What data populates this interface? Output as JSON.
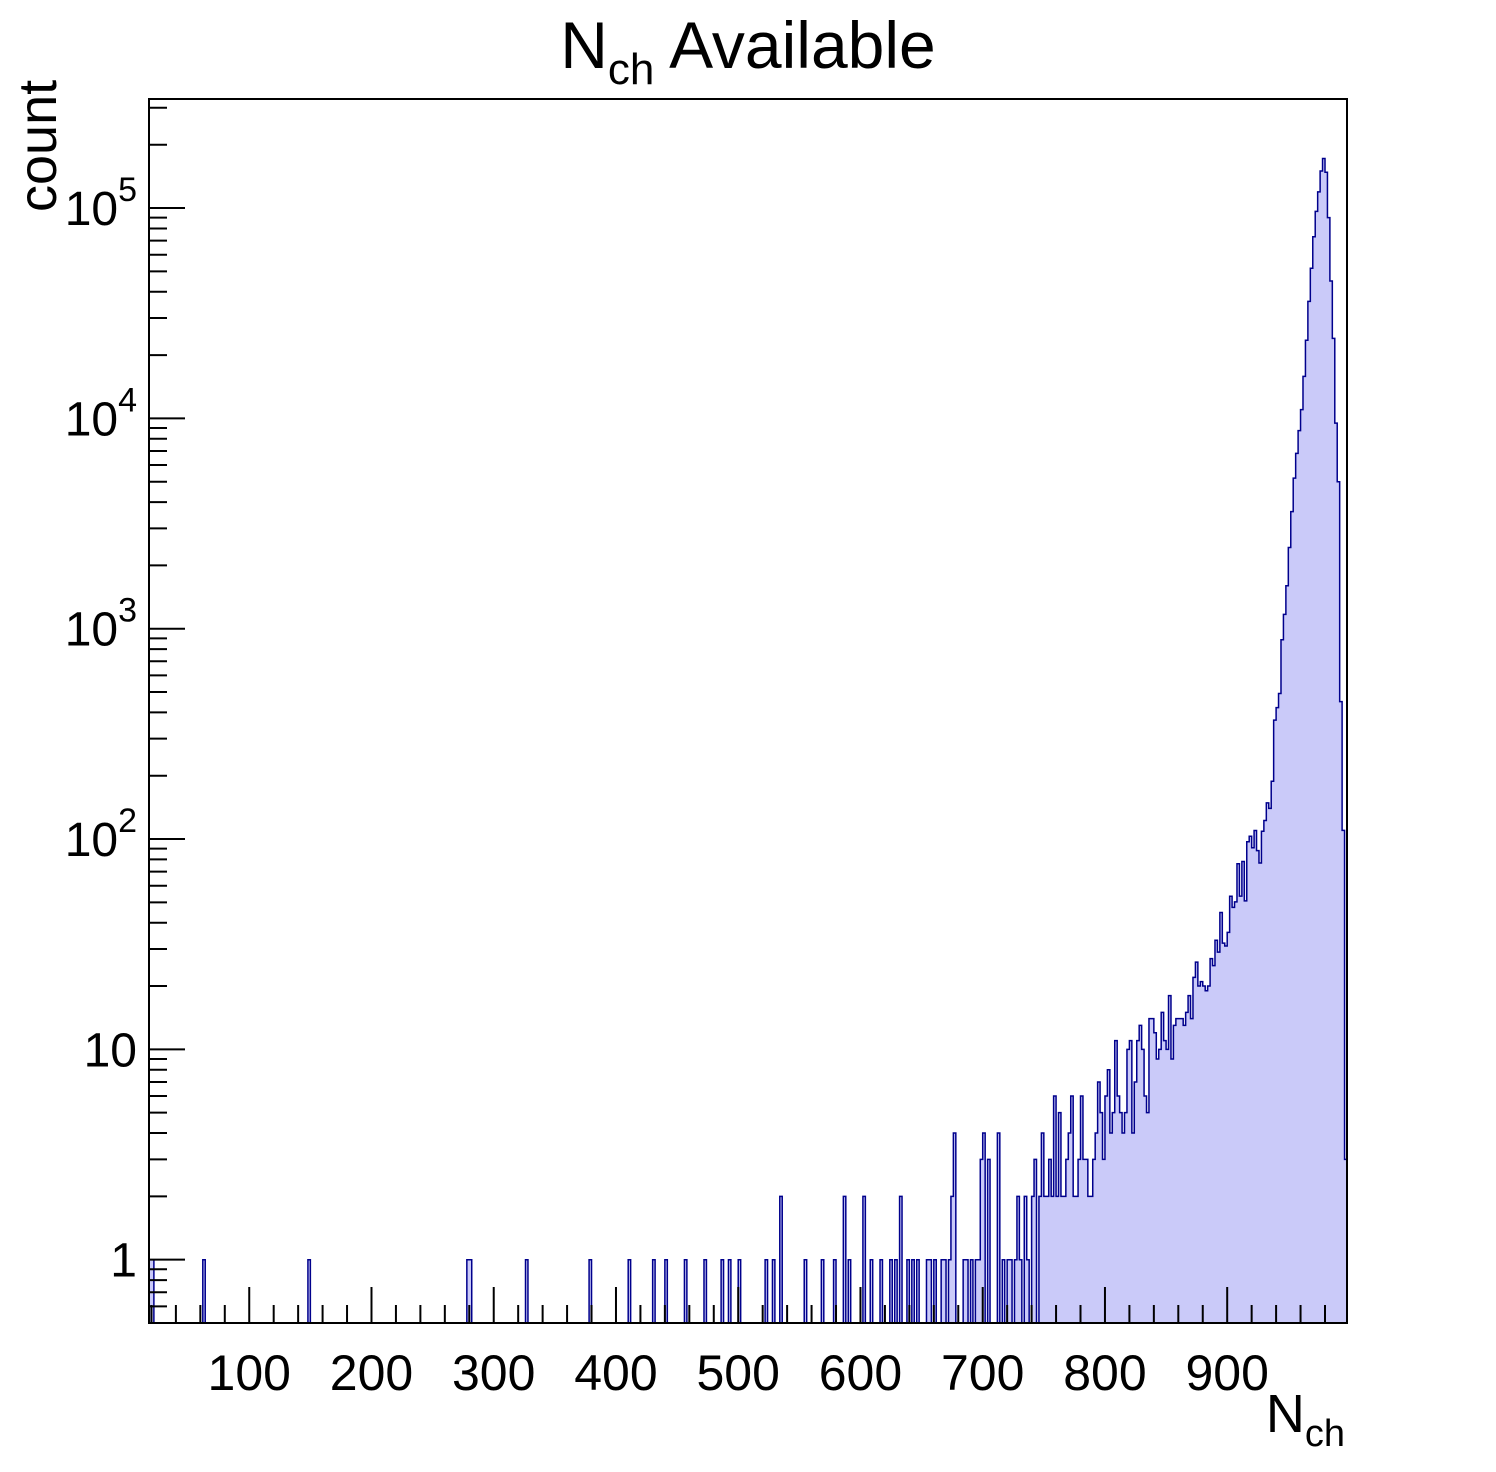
{
  "chart_data": {
    "type": "histogram",
    "title_main": "N",
    "title_sub": "ch",
    "title_rest": " Available",
    "ylabel": "count",
    "xlabel_main": "N",
    "xlabel_sub": "ch",
    "y_scale": "log",
    "grid": false,
    "legend": null,
    "x_range": [
      18,
      998
    ],
    "bin_width": 2,
    "y_range": [
      0.5,
      330000
    ],
    "x_major_ticks": [
      100,
      200,
      300,
      400,
      500,
      600,
      700,
      800,
      900
    ],
    "x_minor_step": 20,
    "y_tick_labels": [
      {
        "base": "1",
        "exp": ""
      },
      {
        "base": "10",
        "exp": ""
      },
      {
        "base": "10",
        "exp": "2"
      },
      {
        "base": "10",
        "exp": "3"
      },
      {
        "base": "10",
        "exp": "4"
      },
      {
        "base": "10",
        "exp": "5"
      }
    ],
    "peak": {
      "x": 978,
      "count": 172000
    },
    "colors": {
      "fill": "#cacaf9",
      "line": "#00008c",
      "frame": "#000000",
      "text": "#000000"
    },
    "spikes": [
      [
        18,
        1
      ],
      [
        20,
        1
      ],
      [
        62,
        1
      ],
      [
        148,
        1
      ],
      [
        278,
        1
      ],
      [
        280,
        1
      ],
      [
        326,
        1
      ],
      [
        378,
        1
      ],
      [
        410,
        1
      ],
      [
        430,
        1
      ],
      [
        440,
        1
      ],
      [
        456,
        1
      ],
      [
        472,
        1
      ],
      [
        486,
        1
      ],
      [
        492,
        1
      ],
      [
        500,
        1
      ],
      [
        522,
        1
      ],
      [
        528,
        1
      ],
      [
        534,
        2
      ],
      [
        554,
        1
      ],
      [
        568,
        1
      ],
      [
        578,
        1
      ],
      [
        586,
        2
      ],
      [
        590,
        1
      ],
      [
        602,
        2
      ],
      [
        608,
        1
      ],
      [
        616,
        1
      ],
      [
        624,
        1
      ],
      [
        628,
        1
      ],
      [
        632,
        2
      ],
      [
        638,
        1
      ],
      [
        642,
        1
      ],
      [
        646,
        1
      ],
      [
        654,
        1
      ],
      [
        656,
        1
      ],
      [
        660,
        1
      ],
      [
        666,
        1
      ],
      [
        668,
        1
      ],
      [
        672,
        1
      ],
      [
        674,
        2
      ],
      [
        676,
        4
      ],
      [
        684,
        1
      ],
      [
        686,
        1
      ],
      [
        690,
        1
      ],
      [
        694,
        1
      ],
      [
        696,
        1
      ],
      [
        698,
        3
      ],
      [
        700,
        4
      ],
      [
        704,
        3
      ],
      [
        712,
        4
      ],
      [
        716,
        1
      ],
      [
        720,
        1
      ],
      [
        722,
        1
      ],
      [
        726,
        1
      ],
      [
        728,
        2
      ],
      [
        730,
        1
      ],
      [
        734,
        2
      ],
      [
        736,
        1
      ],
      [
        740,
        2
      ],
      [
        742,
        3
      ],
      [
        746,
        2
      ],
      [
        748,
        4
      ],
      [
        758,
        6
      ],
      [
        762,
        5
      ],
      [
        772,
        6
      ],
      [
        780,
        6
      ],
      [
        794,
        6
      ],
      [
        800,
        6
      ],
      [
        808,
        11
      ],
      [
        818,
        10
      ],
      [
        828,
        13
      ]
    ],
    "envelope_points": [
      [
        750,
        2
      ],
      [
        760,
        2.3
      ],
      [
        770,
        2.8
      ],
      [
        780,
        3.2
      ],
      [
        790,
        4
      ],
      [
        800,
        4.5
      ],
      [
        810,
        5.5
      ],
      [
        820,
        6.5
      ],
      [
        830,
        8
      ],
      [
        840,
        10
      ],
      [
        850,
        12
      ],
      [
        860,
        15
      ],
      [
        870,
        18
      ],
      [
        880,
        23
      ],
      [
        890,
        30
      ],
      [
        900,
        42
      ],
      [
        910,
        60
      ],
      [
        920,
        85
      ],
      [
        927,
        100
      ],
      [
        933,
        150
      ],
      [
        939,
        350
      ],
      [
        943,
        600
      ],
      [
        945,
        1000
      ],
      [
        948,
        1600
      ],
      [
        951,
        3000
      ],
      [
        954,
        5200
      ],
      [
        957,
        7800
      ],
      [
        960,
        11000
      ],
      [
        963,
        19000
      ],
      [
        966,
        36000
      ],
      [
        969,
        62000
      ],
      [
        971,
        86000
      ],
      [
        973,
        108000
      ],
      [
        975,
        132000
      ],
      [
        976,
        150000
      ],
      [
        977,
        162000
      ],
      [
        978,
        172000
      ],
      [
        979,
        167000
      ],
      [
        980,
        148000
      ],
      [
        981,
        116000
      ],
      [
        982,
        90000
      ],
      [
        983,
        62000
      ],
      [
        984,
        45000
      ],
      [
        985,
        35000
      ],
      [
        986,
        24000
      ],
      [
        987,
        15000
      ],
      [
        988,
        9500
      ],
      [
        989,
        7800
      ],
      [
        990,
        5000
      ],
      [
        991,
        2400
      ],
      [
        992,
        450
      ],
      [
        993,
        320
      ],
      [
        994,
        110
      ],
      [
        995,
        40
      ],
      [
        996,
        3
      ],
      [
        998,
        3
      ]
    ],
    "noise": {
      "amp_low": 0.55,
      "amp_mid": 0.32,
      "mid_start": 870,
      "smooth_start": 945,
      "round_below": 40
    }
  }
}
